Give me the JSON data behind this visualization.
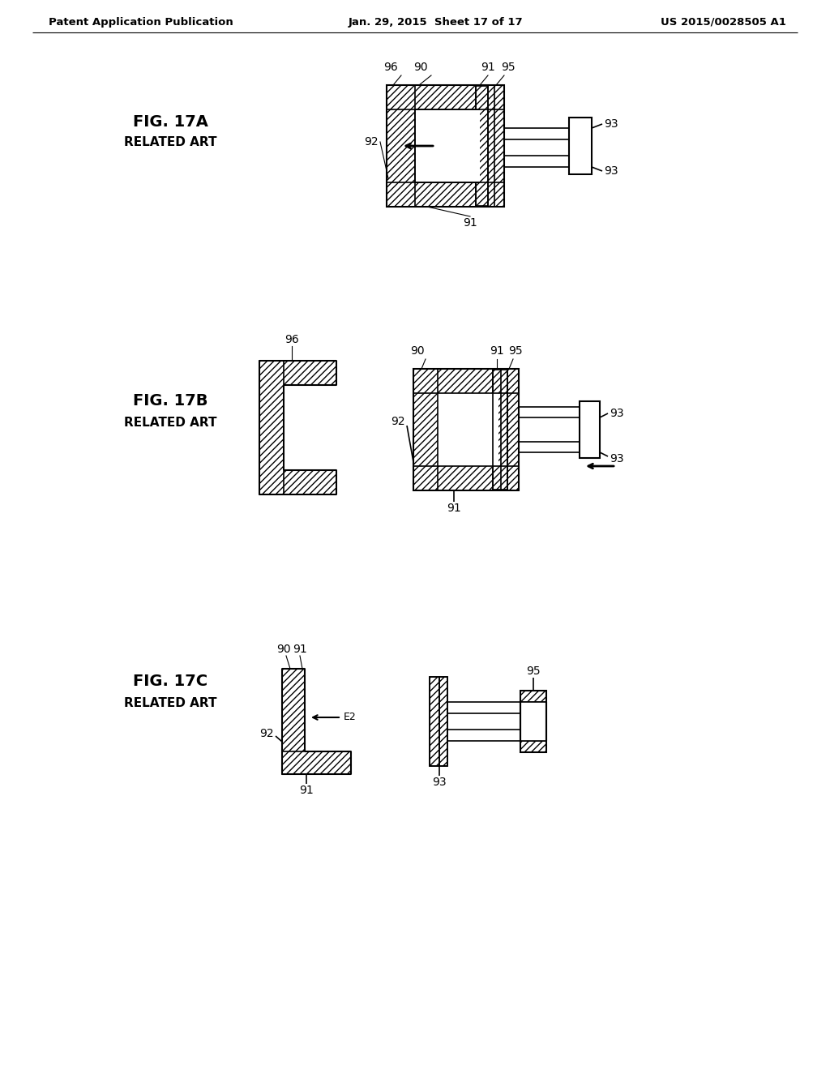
{
  "title_left": "Patent Application Publication",
  "title_center": "Jan. 29, 2015  Sheet 17 of 17",
  "title_right": "US 2015/0028505 A1",
  "fig_labels": [
    "FIG. 17A",
    "FIG. 17B",
    "FIG. 17C"
  ],
  "related_art": "RELATED ART",
  "background": "#ffffff",
  "header_fontsize": 9.5,
  "fig_label_fontsize": 14,
  "related_art_fontsize": 11,
  "label_fontsize": 10
}
